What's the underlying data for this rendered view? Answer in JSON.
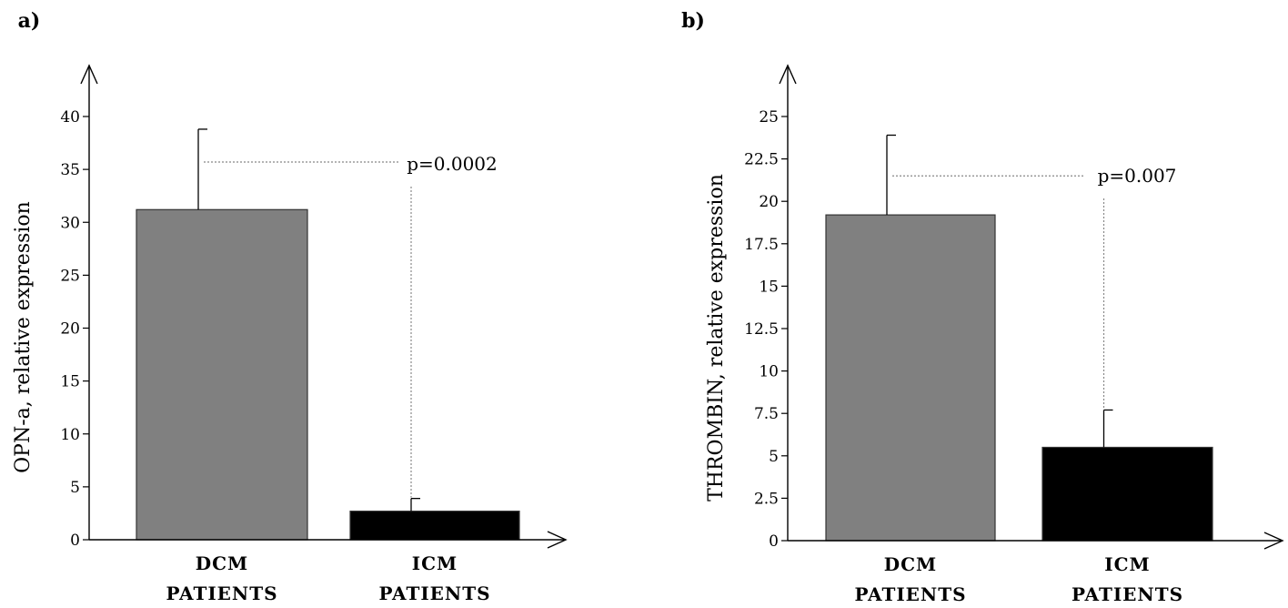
{
  "chart_data": [
    {
      "type": "bar",
      "panel_label": "a)",
      "categories": [
        {
          "line1": "DCM",
          "line2": "PATIENTS"
        },
        {
          "line1": "ICM",
          "line2": "PATIENTS"
        }
      ],
      "values": [
        31.2,
        2.7
      ],
      "errors": [
        7.6,
        1.2
      ],
      "bar_colors": [
        "#808080",
        "#000000"
      ],
      "ylabel": "OPN-a, relative expression",
      "ylim": [
        0,
        40
      ],
      "yticks": [
        "0",
        "5",
        "10",
        "15",
        "20",
        "25",
        "30",
        "35",
        "40"
      ],
      "ytick_values": [
        0,
        5,
        10,
        15,
        20,
        25,
        30,
        35,
        40
      ],
      "annotation": {
        "text": "p=0.0002",
        "bracket_y": 35.7
      },
      "grid": false
    },
    {
      "type": "bar",
      "panel_label": "b)",
      "categories": [
        {
          "line1": "DCM",
          "line2": "PATIENTS"
        },
        {
          "line1": "ICM",
          "line2": "PATIENTS"
        }
      ],
      "values": [
        19.2,
        5.5
      ],
      "errors": [
        4.7,
        2.2
      ],
      "bar_colors": [
        "#808080",
        "#000000"
      ],
      "ylabel": "THROMBIN, relative expression",
      "ylim": [
        0,
        25
      ],
      "yticks": [
        "0",
        "2.5",
        "5",
        "7.5",
        "10",
        "12.5",
        "15",
        "17.5",
        "20",
        "22.5",
        "25"
      ],
      "ytick_values": [
        0,
        2.5,
        5,
        7.5,
        10,
        12.5,
        15,
        17.5,
        20,
        22.5,
        25
      ],
      "annotation": {
        "text": "p=0.007",
        "bracket_y": 21.5
      },
      "grid": false
    }
  ]
}
